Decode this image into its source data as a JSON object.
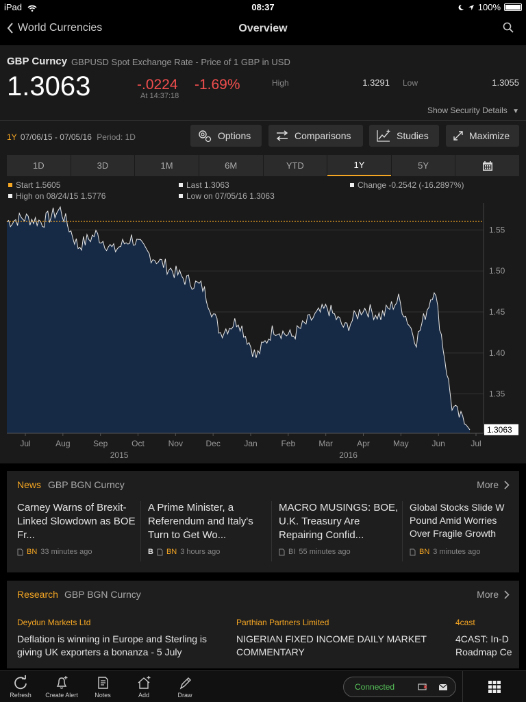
{
  "status_bar": {
    "device": "iPad",
    "time": "08:37",
    "battery": "100%"
  },
  "nav": {
    "back_label": "World Currencies",
    "title": "Overview"
  },
  "security": {
    "ticker": "GBP Curncy",
    "description": "GBPUSD Spot Exchange Rate - Price of 1 GBP in USD",
    "last_price": "1.3063",
    "change_abs": "-.0224",
    "change_pct": "-1.69%",
    "change_time": "At 14:37:18",
    "high_label": "High",
    "high_value": "1.3291",
    "low_label": "Low",
    "low_value": "1.3055",
    "show_details": "Show Security Details"
  },
  "chart_controls": {
    "range_code": "1Y",
    "range_dates": "07/06/15 - 07/05/16",
    "period": "Period: 1D",
    "options": "Options",
    "comparisons": "Comparisons",
    "studies": "Studies",
    "maximize": "Maximize",
    "tabs": [
      "1D",
      "3D",
      "1M",
      "6M",
      "YTD",
      "1Y",
      "5Y"
    ],
    "active_tab": "1Y"
  },
  "stats": {
    "start": "Start 1.5605",
    "last": "Last 1.3063",
    "change": "Change -0.2542 (-16.2897%)",
    "high": "High on 08/24/15 1.5776",
    "low": "Low on 07/05/16 1.3063"
  },
  "colors": {
    "accent": "#f5a623",
    "negative": "#f24e4e",
    "positive": "#57c35a",
    "chart_fill": "#172a45"
  },
  "chart_data": {
    "type": "area",
    "y_ticks": [
      "1.55",
      "1.50",
      "1.45",
      "1.40",
      "1.35"
    ],
    "ylim": [
      1.302,
      1.583
    ],
    "last_label": "1.3063",
    "start_reference": 1.5605,
    "month_labels": [
      "Jul",
      "Aug",
      "Sep",
      "Oct",
      "Nov",
      "Dec",
      "Jan",
      "Feb",
      "Mar",
      "Apr",
      "May",
      "Jun",
      "Jul"
    ],
    "year_labels": [
      "2015",
      "2016"
    ],
    "grid": true,
    "x": [
      "2015-07",
      "2015-07",
      "2015-08",
      "2015-08",
      "2015-09",
      "2015-09",
      "2015-10",
      "2015-10",
      "2015-11",
      "2015-11",
      "2015-12",
      "2015-12",
      "2016-01",
      "2016-01",
      "2016-02",
      "2016-02",
      "2016-03",
      "2016-03",
      "2016-04",
      "2016-04",
      "2016-05",
      "2016-05",
      "2016-06",
      "2016-06",
      "2016-06",
      "2016-06",
      "2016-07"
    ],
    "values": [
      1.56,
      1.565,
      1.56,
      1.575,
      1.53,
      1.545,
      1.525,
      1.54,
      1.52,
      1.505,
      1.49,
      1.48,
      1.425,
      1.44,
      1.395,
      1.43,
      1.42,
      1.44,
      1.455,
      1.43,
      1.455,
      1.445,
      1.465,
      1.415,
      1.48,
      1.335,
      1.3063
    ]
  },
  "news": {
    "title": "News",
    "subtitle": "GBP BGN Curncy",
    "more": "More",
    "items": [
      {
        "headline": "Carney Warns of Brexit-Linked Slowdown as BOE Fr...",
        "source": "BN",
        "time": "33 minutes ago",
        "flag": ""
      },
      {
        "headline": "A Prime Minister, a Referendum and Italy's Turn to Get Wo...",
        "source": "BN",
        "time": "3 hours ago",
        "flag": "B"
      },
      {
        "headline": "MACRO MUSINGS: BOE, U.K. Treasury Are Repairing Confid...",
        "source": "BI",
        "time": "55 minutes ago",
        "flag": ""
      },
      {
        "headline": "Global Stocks Slide W Pound Amid Worries Over Fragile Growth",
        "source": "BN",
        "time": "3 minutes ago",
        "flag": ""
      }
    ]
  },
  "research": {
    "title": "Research",
    "subtitle": "GBP BGN Curncy",
    "more": "More",
    "items": [
      {
        "source": "Deydun Markets Ltd",
        "title": "Deflation is winning in Europe and Sterling is giving UK exporters a bonanza - 5 July"
      },
      {
        "source": "Parthian Partners Limited",
        "title": "NIGERIAN FIXED INCOME DAILY MARKET COMMENTARY"
      },
      {
        "source": "4cast",
        "title": "4CAST: In-D Roadmap Ce"
      }
    ]
  },
  "toolbar": {
    "refresh": "Refresh",
    "create_alert": "Create Alert",
    "notes": "Notes",
    "add": "Add",
    "draw": "Draw",
    "connection": "Connected"
  }
}
